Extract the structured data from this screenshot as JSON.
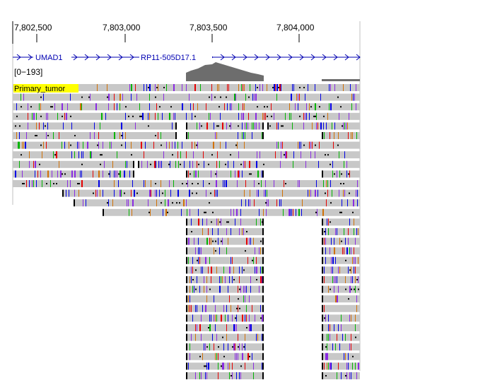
{
  "ruler": {
    "ticks": [
      "7,802,500",
      "7,803,000",
      "7,803,500",
      "7,804,000"
    ]
  },
  "genes": [
    {
      "name": "UMAD1"
    },
    {
      "name": "RP11-505D17.1"
    }
  ],
  "coverage": {
    "range_label": "[0−193]"
  },
  "sample": {
    "label": "Primary_tumor"
  },
  "colors": {
    "background": "#ffffff",
    "ruler_line": "#000000",
    "gene_feature": "#0000b2",
    "coverage_fill": "#6d6d6d",
    "read_fill": "#c8c8c8",
    "sample_highlight": "#ffff00",
    "mismatch_A": "#00b400",
    "mismatch_C": "#0000e6",
    "mismatch_G": "#d17105",
    "mismatch_T": "#e60000",
    "insertion": "#8a2be2",
    "clip": "#000000",
    "border": "#c0c0c0"
  }
}
